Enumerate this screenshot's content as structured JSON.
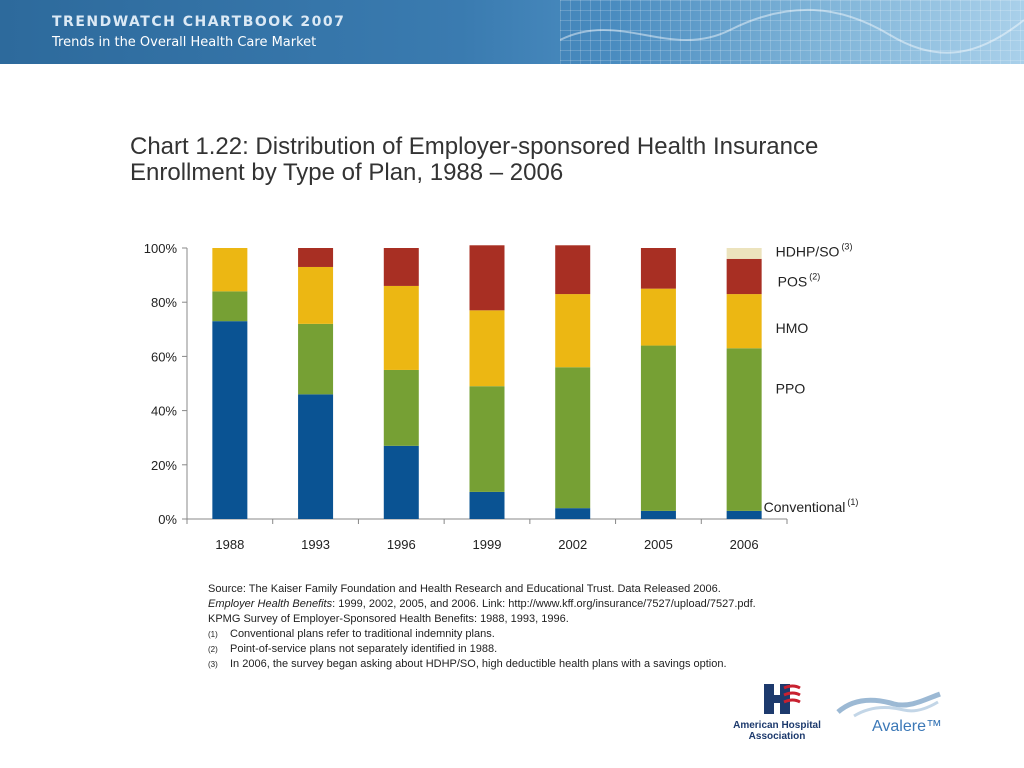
{
  "header": {
    "brand": "TRENDWATCH CHARTBOOK 2007",
    "subtitle": "Trends in the Overall Health Care Market"
  },
  "title": "Chart 1.22: Distribution of Employer-sponsored Health Insurance Enrollment by Type of Plan, 1988 – 2006",
  "chart_data": {
    "type": "bar",
    "stacked": true,
    "categories": [
      "1988",
      "1993",
      "1996",
      "1999",
      "2002",
      "2005",
      "2006"
    ],
    "ylim": [
      0,
      100
    ],
    "yticks": [
      "0%",
      "20%",
      "40%",
      "60%",
      "80%",
      "100%"
    ],
    "ytick_values": [
      0,
      20,
      40,
      60,
      80,
      100
    ],
    "grid": false,
    "legend_placement": "right",
    "series": [
      {
        "name": "Conventional",
        "sup": "(1)",
        "color": "#0a5393",
        "values": [
          73,
          46,
          27,
          10,
          4,
          3,
          3
        ]
      },
      {
        "name": "PPO",
        "sup": "",
        "color": "#76a034",
        "values": [
          11,
          26,
          28,
          39,
          52,
          61,
          60
        ]
      },
      {
        "name": "HMO",
        "sup": "",
        "color": "#ecb713",
        "values": [
          16,
          21,
          31,
          28,
          27,
          21,
          20
        ]
      },
      {
        "name": "POS",
        "sup": "(2)",
        "color": "#a82f23",
        "values": [
          0,
          7,
          14,
          24,
          18,
          15,
          13
        ]
      },
      {
        "name": "HDHP/SO",
        "sup": "(3)",
        "color": "#ece3bd",
        "values": [
          0,
          0,
          0,
          0,
          0,
          0,
          4
        ]
      }
    ]
  },
  "notes": {
    "source_line1": "Source:  The Kaiser Family Foundation and Health Research and Educational Trust. Data Released 2006.",
    "source_line2_italic": "Employer Health Benefits",
    "source_line2_rest": ": 1999, 2002, 2005, and 2006. Link: http://www.kff.org/insurance/7527/upload/7527.pdf.",
    "source_line3": "KPMG Survey of Employer-Sponsored Health Benefits: 1988, 1993, 1996.",
    "footnotes": [
      {
        "mark": "(1)",
        "text": "Conventional plans refer to traditional indemnity plans."
      },
      {
        "mark": "(2)",
        "text": "Point-of-service plans not separately identified in 1988."
      },
      {
        "mark": "(3)",
        "text": "In 2006, the survey began asking about HDHP/SO, high deductible health plans with a savings option."
      }
    ]
  },
  "logos": {
    "aha": "American Hospital Association",
    "avalere": "Avalere"
  }
}
